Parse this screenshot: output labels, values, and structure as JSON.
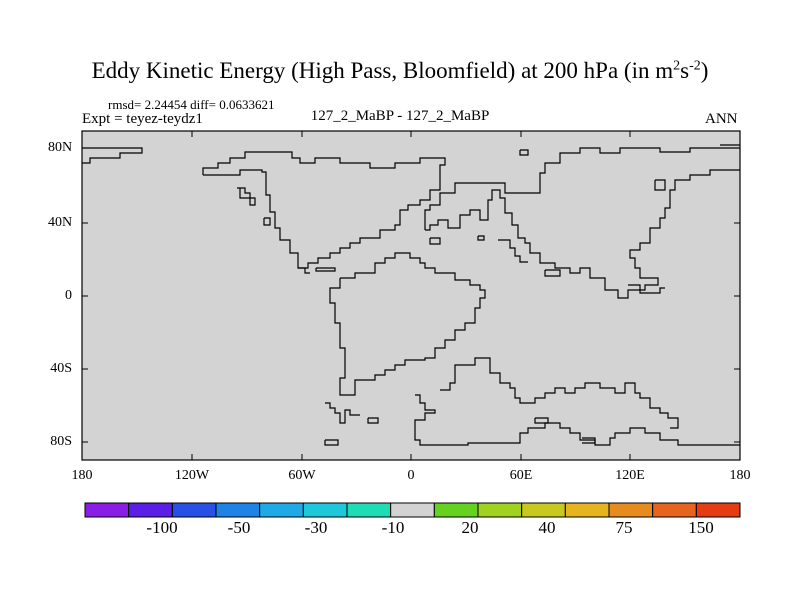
{
  "figure": {
    "title_main": "Eddy Kinetic Energy (High Pass, Bloomfield) at 200 hPa (in m",
    "title_sup1": "2",
    "title_mid": "s",
    "title_sup2": "-2",
    "title_end": ")",
    "stats": "rmsd= 2.24454  diff= 0.0633621",
    "expt": "Expt = teyez-teydz1",
    "center_label": "127_2_MaBP - 127_2_MaBP",
    "period": "ANN"
  },
  "map": {
    "fill_color": "#d3d3d3",
    "coastline_color": "#000000",
    "lon_range": [
      -180,
      180
    ],
    "lat_range": [
      -90,
      90
    ]
  },
  "axes": {
    "y_ticks": [
      "80N",
      "40N",
      "0",
      "40S",
      "80S"
    ],
    "x_ticks": [
      "180",
      "120W",
      "60W",
      "0",
      "60E",
      "120E",
      "180"
    ]
  },
  "colorbar": {
    "colors": [
      "#8a1ee6",
      "#5a1ee6",
      "#2850e6",
      "#1e82e6",
      "#1eaae6",
      "#1ec8dc",
      "#1edcb4",
      "#d3d3d3",
      "#64d21e",
      "#a0d21e",
      "#c8c81e",
      "#e6b41e",
      "#e68c1e",
      "#e6641e",
      "#e63c14"
    ],
    "labels": [
      "-100",
      "-50",
      "-30",
      "-10",
      "20",
      "40",
      "75",
      "150"
    ]
  }
}
